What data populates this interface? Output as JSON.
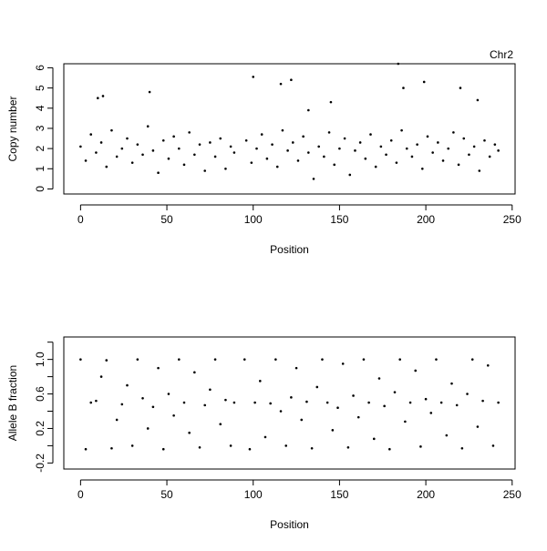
{
  "chart_data": [
    {
      "type": "scatter",
      "title": "Chr2",
      "x_label": "Position",
      "y_label": "Copy number",
      "color": "#000000",
      "xlim": [
        -9.7,
        251.7
      ],
      "ylim": [
        -0.25,
        6.2
      ],
      "xticks": [
        0,
        50,
        100,
        150,
        200,
        250
      ],
      "yticks": [
        0,
        1,
        2,
        3,
        4,
        5,
        6
      ],
      "x": [
        0,
        3,
        6,
        9,
        12,
        15,
        18,
        21,
        24,
        27,
        30,
        33,
        36,
        39,
        42,
        45,
        48,
        51,
        54,
        57,
        60,
        63,
        66,
        69,
        72,
        75,
        78,
        81,
        84,
        87,
        89,
        96,
        99,
        102,
        105,
        108,
        111,
        114,
        117,
        120,
        123,
        126,
        129,
        132,
        135,
        138,
        141,
        144,
        147,
        150,
        153,
        156,
        159,
        162,
        165,
        168,
        171,
        174,
        177,
        180,
        183,
        186,
        189,
        192,
        195,
        198,
        201,
        204,
        207,
        210,
        213,
        216,
        219,
        222,
        225,
        228,
        231,
        234,
        237,
        240,
        242,
        100,
        184,
        122,
        116,
        199,
        187,
        220,
        40,
        10,
        13,
        230,
        145,
        132
      ],
      "y": [
        2.1,
        1.4,
        2.7,
        1.8,
        2.3,
        1.1,
        2.9,
        1.6,
        2.0,
        2.5,
        1.3,
        2.2,
        1.7,
        3.1,
        1.9,
        0.8,
        2.4,
        1.5,
        2.6,
        2.0,
        1.2,
        2.8,
        1.7,
        2.2,
        0.9,
        2.3,
        1.6,
        2.5,
        1.0,
        2.1,
        1.8,
        2.4,
        1.3,
        2.0,
        2.7,
        1.5,
        2.2,
        1.1,
        2.9,
        1.9,
        2.3,
        1.4,
        2.6,
        1.8,
        0.5,
        2.1,
        1.6,
        2.8,
        1.2,
        2.0,
        2.5,
        0.7,
        1.9,
        2.3,
        1.5,
        2.7,
        1.1,
        2.1,
        1.7,
        2.4,
        1.3,
        2.9,
        2.0,
        1.6,
        2.2,
        1.0,
        2.6,
        1.8,
        2.3,
        1.4,
        2.0,
        2.8,
        1.2,
        2.5,
        1.7,
        2.1,
        0.9,
        2.4,
        1.6,
        2.2,
        1.9,
        5.55,
        6.2,
        5.4,
        5.2,
        5.3,
        5.0,
        5.0,
        4.8,
        4.5,
        4.6,
        4.4,
        4.3,
        3.9
      ]
    },
    {
      "type": "scatter",
      "x_label": "Position",
      "y_label": "Allele B fraction",
      "color": "#000000",
      "xlim": [
        -9.7,
        251.7
      ],
      "ylim": [
        -0.27,
        1.26
      ],
      "xticks": [
        0,
        50,
        100,
        150,
        200,
        250
      ],
      "yticks": [
        {
          "value": -0.2,
          "label": "-0.2"
        },
        {
          "value": 0.2,
          "label": "0.2"
        },
        {
          "value": 0.6,
          "label": "0.6"
        },
        {
          "value": 1,
          "label": "1.0"
        }
      ],
      "yminor": [
        0,
        0.4,
        0.8,
        1.2
      ],
      "x": [
        0,
        3,
        6,
        9,
        12,
        15,
        18,
        21,
        24,
        27,
        30,
        33,
        36,
        39,
        42,
        45,
        48,
        51,
        54,
        57,
        60,
        63,
        66,
        69,
        72,
        75,
        78,
        81,
        84,
        87,
        89,
        95,
        98,
        101,
        104,
        107,
        110,
        113,
        116,
        119,
        122,
        125,
        128,
        131,
        134,
        137,
        140,
        143,
        146,
        149,
        152,
        155,
        158,
        161,
        164,
        167,
        170,
        173,
        176,
        179,
        182,
        185,
        188,
        191,
        194,
        197,
        200,
        203,
        206,
        209,
        212,
        215,
        218,
        221,
        224,
        227,
        230,
        233,
        236,
        239,
        242
      ],
      "y": [
        1.0,
        -0.04,
        0.5,
        0.52,
        0.8,
        0.99,
        -0.03,
        0.3,
        0.48,
        0.7,
        0.0,
        1.0,
        0.55,
        0.2,
        0.45,
        0.9,
        -0.04,
        0.6,
        0.35,
        1.0,
        0.5,
        0.15,
        0.85,
        -0.02,
        0.47,
        0.65,
        1.0,
        0.25,
        0.53,
        0.0,
        0.5,
        1.0,
        -0.04,
        0.5,
        0.75,
        0.1,
        0.49,
        1.0,
        0.4,
        0.0,
        0.56,
        0.9,
        0.3,
        0.51,
        -0.03,
        0.68,
        1.0,
        0.5,
        0.18,
        0.44,
        0.95,
        -0.02,
        0.58,
        0.33,
        1.0,
        0.5,
        0.08,
        0.78,
        0.46,
        -0.04,
        0.62,
        1.0,
        0.28,
        0.5,
        0.87,
        -0.01,
        0.54,
        0.38,
        1.0,
        0.5,
        0.12,
        0.72,
        0.47,
        -0.03,
        0.6,
        1.0,
        0.22,
        0.52,
        0.93,
        0.0,
        0.5
      ]
    }
  ]
}
